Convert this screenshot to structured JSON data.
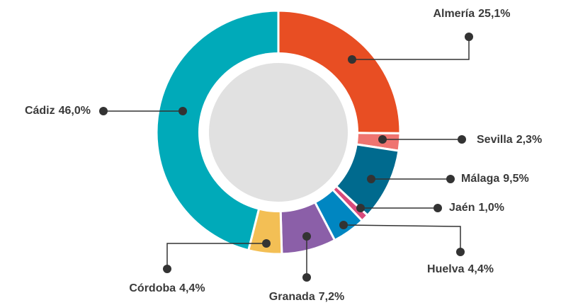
{
  "chart_data": {
    "type": "donut",
    "categories": [
      "Almería",
      "Sevilla",
      "Málaga",
      "Jaén",
      "Huelva",
      "Granada",
      "Córdoba",
      "Cádiz"
    ],
    "values": [
      25.1,
      2.3,
      9.5,
      1.0,
      4.4,
      7.2,
      4.4,
      46.0
    ],
    "value_labels": [
      "25,1%",
      "2,3%",
      "9,5%",
      "1,0%",
      "4,4%",
      "7,2%",
      "4,4%",
      "46,0%"
    ],
    "colors": [
      "#e84e23",
      "#ef7470",
      "#006a8e",
      "#d94a7b",
      "#0086c1",
      "#8b5fa8",
      "#f3bf55",
      "#00aab9"
    ]
  }
}
